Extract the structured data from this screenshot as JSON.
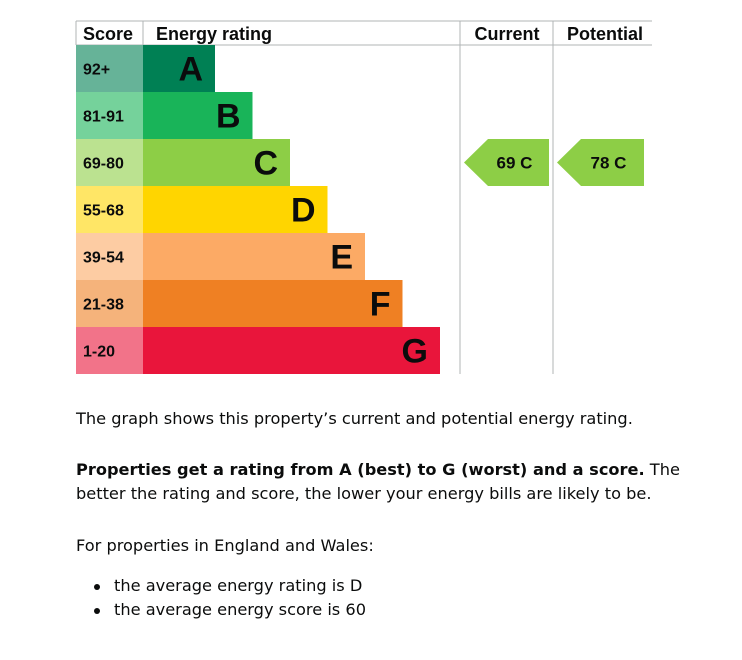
{
  "chart_data": {
    "type": "table",
    "headers": {
      "score": "Score",
      "rating": "Energy rating",
      "current": "Current",
      "potential": "Potential"
    },
    "bands": [
      {
        "range": "92+",
        "letter": "A",
        "color": "#008054",
        "light": "#66b398"
      },
      {
        "range": "81-91",
        "letter": "B",
        "color": "#19b459",
        "light": "#75d29b"
      },
      {
        "range": "69-80",
        "letter": "C",
        "color": "#8dce46",
        "light": "#bbe290"
      },
      {
        "range": "55-68",
        "letter": "D",
        "color": "#ffd500",
        "light": "#ffe666"
      },
      {
        "range": "39-54",
        "letter": "E",
        "color": "#fcaa65",
        "light": "#fdcca3"
      },
      {
        "range": "21-38",
        "letter": "F",
        "color": "#ef8023",
        "light": "#f5b37b"
      },
      {
        "range": "1-20",
        "letter": "G",
        "color": "#e9153b",
        "light": "#f27389"
      }
    ],
    "current": {
      "score": 69,
      "band": "C",
      "label": "69  C"
    },
    "potential": {
      "score": 78,
      "band": "C",
      "label": "78  C"
    }
  },
  "text": {
    "intro": "The graph shows this property’s current and potential energy rating.",
    "rating_bold": "Properties get a rating from A (best) to G (worst) and a score.",
    "rating_rest": " The better the rating and score, the lower your energy bills are likely to be.",
    "region": "For properties in England and Wales:",
    "facts": [
      "the average energy rating is D",
      "the average energy score is 60"
    ]
  }
}
